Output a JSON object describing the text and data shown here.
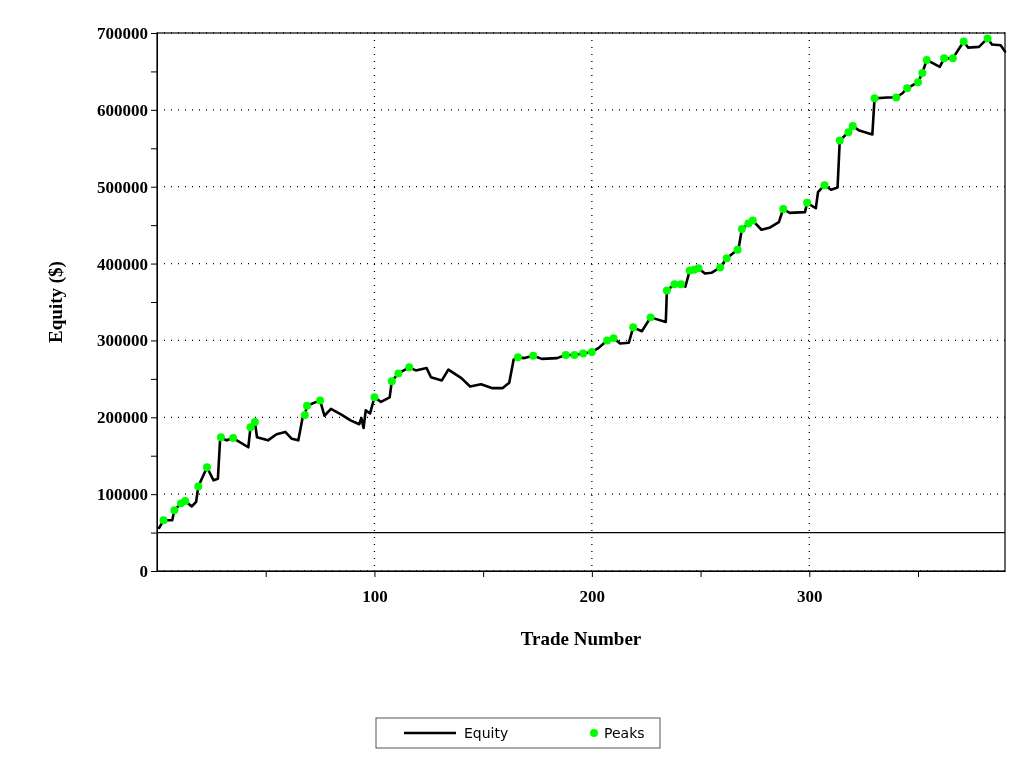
{
  "chart_data": {
    "type": "line",
    "xlabel": "Trade Number",
    "ylabel": "Equity ($)",
    "xlim": [
      0,
      390
    ],
    "ylim": [
      0,
      700000
    ],
    "xticks": [
      {
        "value": 50,
        "label": null
      },
      100,
      {
        "value": 150,
        "label": null
      },
      200,
      {
        "value": 250,
        "label": null
      },
      300,
      {
        "value": 350,
        "label": null
      }
    ],
    "yticks": [
      0,
      {
        "value": 50000,
        "label": null
      },
      100000,
      {
        "value": 150000,
        "label": null
      },
      200000,
      {
        "value": 250000,
        "label": null
      },
      300000,
      {
        "value": 350000,
        "label": null
      },
      400000,
      {
        "value": 450000,
        "label": null
      },
      500000,
      {
        "value": 550000,
        "label": null
      },
      600000,
      {
        "value": 650000,
        "label": null
      },
      700000
    ],
    "grid": true,
    "legend": "bottom",
    "ref_lines": [
      {
        "axis": "y",
        "value": 50000,
        "color": "#000000",
        "line_style": "solid"
      }
    ],
    "series": [
      {
        "name": "Equity",
        "color": "#000000",
        "line_style": "solid",
        "marker": "none",
        "x": [
          1,
          3,
          7,
          8,
          11,
          13,
          16,
          18,
          19,
          23,
          26,
          28,
          29,
          29.4,
          32,
          35,
          42,
          43,
          45,
          46,
          51,
          55,
          59,
          62,
          65,
          67,
          68,
          69,
          75,
          77,
          80,
          85,
          89,
          93,
          94,
          95,
          96,
          98,
          100,
          103,
          107,
          108,
          111,
          116,
          119,
          124,
          126,
          131,
          134,
          140,
          144,
          149,
          154,
          159,
          162,
          164,
          166,
          169,
          173,
          177,
          184,
          188,
          192,
          196,
          200,
          203,
          207,
          210,
          213,
          217,
          219,
          223,
          227,
          234,
          234.5,
          238,
          241,
          243,
          245,
          249,
          252,
          255,
          259,
          262,
          267,
          267.5,
          269,
          272,
          274,
          278,
          282,
          286,
          288,
          291,
          298,
          299,
          303,
          304,
          307,
          310,
          313,
          314,
          318,
          320,
          323,
          329,
          330,
          336,
          340,
          343,
          345,
          350,
          352,
          354,
          360,
          362,
          366,
          371,
          373,
          378,
          382,
          384,
          388,
          390
        ],
        "values": [
          56000,
          66000,
          66000,
          79000,
          88000,
          91000,
          84000,
          90000,
          110000,
          135000,
          118000,
          120000,
          170000,
          174000,
          170000,
          173000,
          161000,
          187000,
          194000,
          174000,
          170000,
          178000,
          181000,
          172000,
          170000,
          200000,
          203000,
          215000,
          222000,
          202000,
          211000,
          203000,
          196000,
          191000,
          199000,
          186000,
          209000,
          205000,
          226000,
          220000,
          226000,
          247000,
          257000,
          265000,
          261000,
          264000,
          252000,
          248000,
          262000,
          251000,
          240000,
          243000,
          238000,
          238000,
          245000,
          275000,
          278000,
          277000,
          280000,
          276000,
          277000,
          281000,
          281000,
          283000,
          285000,
          290000,
          300000,
          303000,
          296000,
          297000,
          317000,
          312000,
          330000,
          324000,
          365000,
          373000,
          373000,
          370000,
          391000,
          394000,
          387000,
          388000,
          395000,
          407000,
          418000,
          420000,
          445000,
          452000,
          456000,
          444000,
          447000,
          454000,
          471000,
          466000,
          467000,
          479000,
          472000,
          493000,
          502000,
          496000,
          499000,
          560000,
          571000,
          579000,
          573000,
          568000,
          615000,
          616000,
          616000,
          622000,
          628000,
          636000,
          648000,
          665000,
          656000,
          667000,
          667000,
          689000,
          681000,
          682000,
          693000,
          685000,
          684000,
          676000
        ]
      },
      {
        "name": "Peaks",
        "type": "scatter",
        "color": "#00ff00",
        "marker": "circle",
        "x": [
          3,
          8,
          11,
          13,
          19,
          23,
          29.4,
          35,
          43,
          45,
          68,
          69,
          75,
          100,
          108,
          111,
          116,
          166,
          173,
          188,
          192,
          196,
          200,
          207,
          210,
          219,
          227,
          234.5,
          238,
          241,
          245,
          247,
          249,
          259,
          262,
          267,
          269,
          272,
          274,
          288,
          299,
          307,
          314,
          318,
          320,
          330,
          340,
          345,
          350,
          352,
          354,
          362,
          366,
          371,
          382
        ],
        "values": [
          66000,
          79000,
          88000,
          91000,
          110000,
          135000,
          174000,
          173000,
          187000,
          194000,
          203000,
          215000,
          222000,
          226000,
          247000,
          257000,
          265000,
          278000,
          280000,
          281000,
          281000,
          283000,
          285000,
          300000,
          303000,
          317000,
          330000,
          365000,
          373000,
          373000,
          391000,
          392000,
          394000,
          395000,
          407000,
          418000,
          445000,
          452000,
          456000,
          471000,
          479000,
          502000,
          560000,
          571000,
          579000,
          615000,
          616000,
          628000,
          636000,
          648000,
          665000,
          667000,
          667000,
          689000,
          693000
        ]
      }
    ]
  }
}
